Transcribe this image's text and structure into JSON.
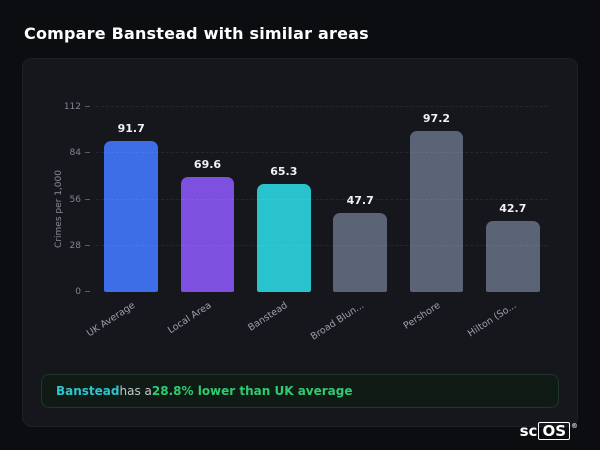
{
  "page": {
    "title": "Compare Banstead with similar areas"
  },
  "chart_data": {
    "type": "bar",
    "categories": [
      "UK Average",
      "Local Area",
      "Banstead",
      "Broad Blun...",
      "Pershore",
      "Hilton (So..."
    ],
    "values": [
      91.7,
      69.6,
      65.3,
      47.7,
      97.2,
      42.7
    ],
    "value_labels": [
      "91.7",
      "69.6",
      "65.3",
      "47.7",
      "97.2",
      "42.7"
    ],
    "bar_colors": [
      "#3e6de8",
      "#7e50e0",
      "#29c3ce",
      "#5a6476",
      "#5a6476",
      "#5a6476"
    ],
    "title": "Compare Banstead with similar areas",
    "xlabel": "",
    "ylabel": "Crimes per 1,000",
    "yticks": [
      0,
      28,
      56,
      84,
      112
    ],
    "ylim": [
      0,
      112
    ],
    "grid": "dashed-horizontal",
    "legend": "none"
  },
  "note": {
    "subject": "Banstead",
    "middle": " has a ",
    "highlight": "28.8% lower than UK average"
  },
  "logo": {
    "prefix": "sc",
    "suffix": "OS",
    "mark": "®"
  }
}
